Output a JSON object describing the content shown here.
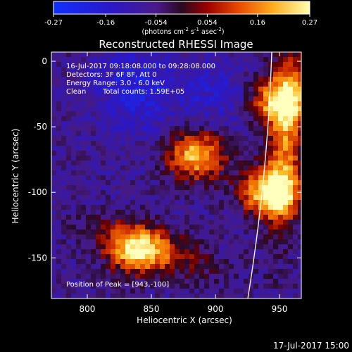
{
  "chart_data": {
    "type": "heatmap",
    "title": "Reconstructed RHESSI Image",
    "xlabel": "Heliocentric X (arcsec)",
    "ylabel": "Heliocentric Y (arcsec)",
    "xlim": [
      772,
      967
    ],
    "ylim": [
      -181,
      7
    ],
    "x_ticks": [
      800,
      850,
      900,
      950
    ],
    "y_ticks": [
      0,
      -50,
      -100,
      -150
    ],
    "colorbar": {
      "ticks": [
        "-0.27",
        "-0.16",
        "-0.054",
        "0.054",
        "0.16",
        "0.27"
      ],
      "range": [
        -0.27,
        0.27
      ],
      "unit_prefix": "(photons cm",
      "unit_exp1": "-2",
      "unit_mid": " s",
      "unit_exp2": "-1",
      "unit_mid2": " asec",
      "unit_exp3": "-2",
      "unit_suffix": ")"
    },
    "sources": [
      {
        "x": 943,
        "y": -100,
        "peak": 0.27
      },
      {
        "x": 885,
        "y": -72,
        "peak": 0.22
      },
      {
        "x": 948,
        "y": -30,
        "peak": 0.2
      },
      {
        "x": 838,
        "y": -145,
        "peak": 0.16
      }
    ],
    "annotations": {
      "time_range": "16-Jul-2017 09:18:08.000 to 09:28:08.000",
      "detectors": "Detectors: 3F 6F 8F, Att 0",
      "energy": "Energy Range: 3.0 - 6.0 keV",
      "clean": "Clean",
      "total_counts": "Total counts: 1.59E+05",
      "peak_position": "Position of Peak = [943,-100]"
    },
    "timestamp": "17-Jul-2017 15:00"
  }
}
